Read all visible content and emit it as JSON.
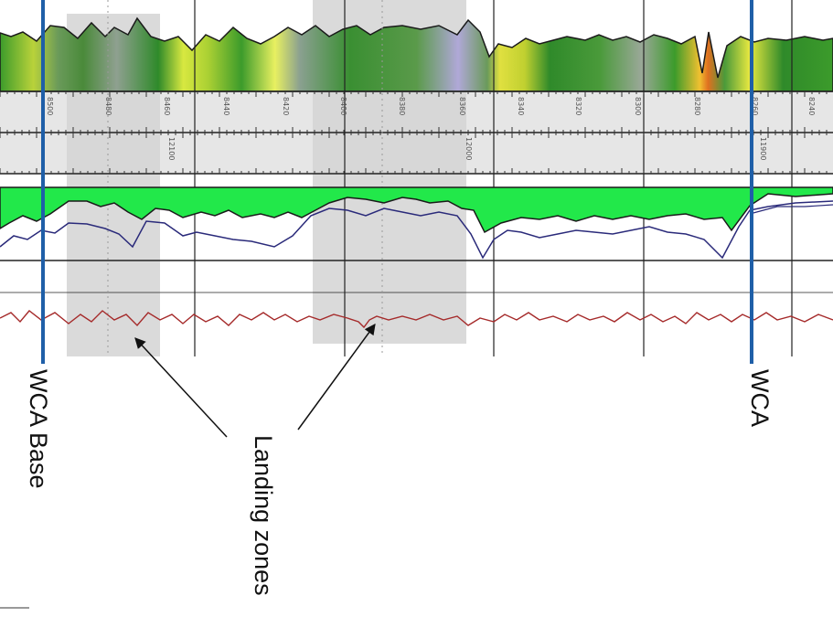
{
  "annotations": {
    "wca_base": "WCA Base",
    "wca": "WCA",
    "landing_zones": "Landing zones"
  },
  "depth_ticks": [
    "8500",
    "8480",
    "8460",
    "8440",
    "8420",
    "8400",
    "8380",
    "8360",
    "8340",
    "8320",
    "8300",
    "8280",
    "8260",
    "8240"
  ],
  "md_ticks": [
    "12100",
    "12000",
    "11900"
  ],
  "colors": {
    "marker_line": "#1f5fa8",
    "landing_zone_fill": "#d9d9d9",
    "green_fill": "#22e84a",
    "navy_curve": "#2a2a7a",
    "red_curve": "#a52a2a",
    "arrow": "#111111"
  }
}
